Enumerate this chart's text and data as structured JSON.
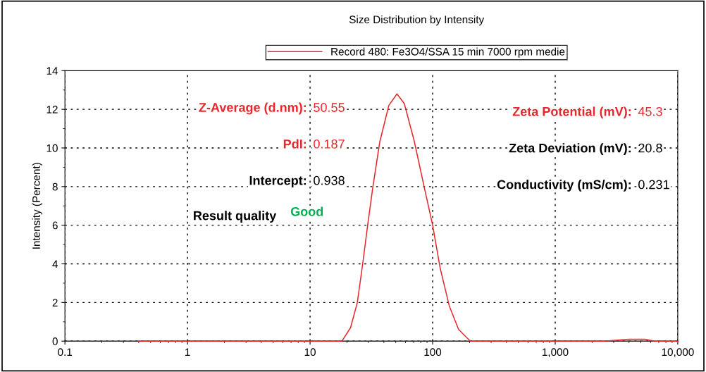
{
  "chart_data": {
    "type": "line",
    "title": "Size Distribution by Intensity",
    "ylabel": "Intensity (Percent)",
    "log": "x",
    "xlim": [
      0.1,
      10000
    ],
    "ylim": [
      0,
      14
    ],
    "xticks": [
      {
        "value": 0.1,
        "label": "0.1"
      },
      1,
      10,
      100,
      {
        "value": 1000,
        "label": "1,000"
      },
      {
        "value": 10000,
        "label": "10,000"
      }
    ],
    "yticks": [
      0,
      2,
      4,
      6,
      8,
      10,
      12,
      14
    ],
    "grid": true,
    "legend": "top",
    "marker": "none",
    "line_style": "solid",
    "series": [
      {
        "name": "Record 480: Fe3O4/SSA 15 min 7000 rpm medie",
        "color": "#e8262b",
        "x": [
          0.4,
          1,
          10,
          18.2,
          21.4,
          24.3,
          27,
          29.5,
          32.4,
          37,
          43.9,
          51.2,
          58.7,
          70.5,
          84.5,
          100,
          115,
          137,
          163,
          203,
          1000,
          2500,
          4000,
          5400,
          6500,
          10000
        ],
        "values": [
          0,
          0,
          0,
          0,
          0.7,
          2.0,
          4.1,
          6.0,
          7.9,
          10.3,
          12.2,
          12.8,
          12.3,
          10.4,
          8.1,
          6.0,
          3.8,
          1.8,
          0.6,
          0,
          0,
          0,
          0.1,
          0.1,
          0,
          0
        ]
      }
    ],
    "annotations": [
      "Z-Average (d.nm):",
      "50.55",
      "PdI:",
      "0.187",
      "Intercept:",
      "0.938",
      "Result quality",
      "Good",
      "Zeta Potential (mV):",
      "45.3",
      "Zeta Deviation (mV):",
      "20.8",
      "Conductivity (mS/cm):",
      "0.231"
    ]
  }
}
